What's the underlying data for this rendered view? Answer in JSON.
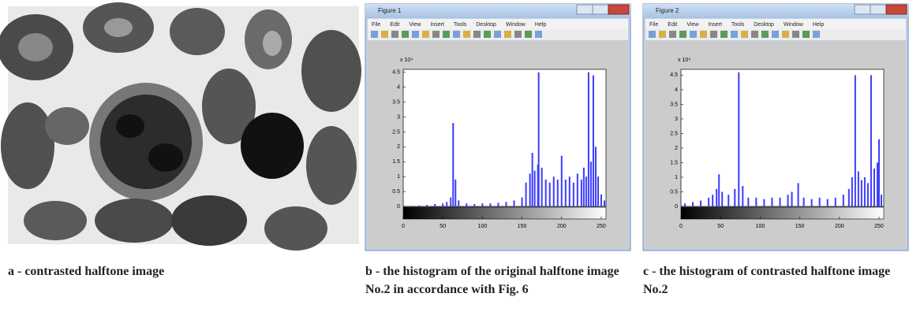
{
  "figure_a": {
    "caption": "a - contrasted halftone image"
  },
  "figure_b": {
    "window_title": "Figure 1",
    "menu": [
      "File",
      "Edit",
      "View",
      "Insert",
      "Tools",
      "Desktop",
      "Window",
      "Help"
    ],
    "caption": "b - the histogram of the original halftone image No.2 in accordance with Fig. 6",
    "chart_data": {
      "type": "bar",
      "y_scale_label": "x 10⁴",
      "color": "#3c3cff",
      "x": [
        10,
        20,
        30,
        40,
        50,
        55,
        60,
        63,
        66,
        70,
        80,
        90,
        100,
        110,
        120,
        130,
        140,
        150,
        155,
        160,
        163,
        166,
        170,
        171,
        175,
        180,
        185,
        190,
        195,
        200,
        205,
        210,
        215,
        220,
        225,
        228,
        231,
        234,
        237,
        240,
        243,
        246,
        250,
        254
      ],
      "values": [
        0.02,
        0.03,
        0.05,
        0.08,
        0.1,
        0.15,
        0.3,
        2.8,
        0.9,
        0.2,
        0.1,
        0.08,
        0.1,
        0.1,
        0.12,
        0.15,
        0.2,
        0.3,
        0.8,
        1.1,
        1.8,
        1.2,
        1.4,
        4.5,
        1.3,
        0.9,
        0.8,
        1.0,
        0.9,
        1.7,
        0.9,
        1.0,
        0.8,
        1.1,
        0.9,
        1.3,
        1.0,
        4.5,
        1.5,
        4.4,
        2.0,
        1.0,
        0.4,
        0.2
      ],
      "xlim": [
        0,
        256
      ],
      "ylim": [
        0,
        4.6
      ],
      "xticks": [
        0,
        50,
        100,
        150,
        200,
        250
      ],
      "yticks": [
        0,
        0.5,
        1,
        1.5,
        2,
        2.5,
        3,
        3.5,
        4,
        4.5
      ]
    }
  },
  "figure_c": {
    "window_title": "Figure 2",
    "menu": [
      "File",
      "Edit",
      "View",
      "Insert",
      "Tools",
      "Desktop",
      "Window",
      "Help"
    ],
    "caption": "c - the histogram of contrasted halftone image No.2",
    "chart_data": {
      "type": "bar",
      "y_scale_label": "x 10⁴",
      "color": "#3c3cff",
      "x": [
        5,
        15,
        25,
        35,
        40,
        45,
        48,
        52,
        60,
        68,
        73,
        78,
        85,
        95,
        105,
        115,
        125,
        135,
        140,
        148,
        155,
        165,
        175,
        185,
        195,
        205,
        212,
        216,
        220,
        224,
        228,
        232,
        236,
        240,
        244,
        248,
        250,
        253
      ],
      "values": [
        0.1,
        0.15,
        0.2,
        0.3,
        0.4,
        0.6,
        1.1,
        0.5,
        0.4,
        0.6,
        4.6,
        0.7,
        0.3,
        0.3,
        0.25,
        0.3,
        0.3,
        0.4,
        0.5,
        0.8,
        0.3,
        0.25,
        0.3,
        0.25,
        0.3,
        0.4,
        0.6,
        1.0,
        4.5,
        1.2,
        0.9,
        1.0,
        0.8,
        4.5,
        1.3,
        1.5,
        2.3,
        0.4
      ],
      "xlim": [
        0,
        256
      ],
      "ylim": [
        0,
        4.7
      ],
      "xticks": [
        0,
        50,
        100,
        150,
        200,
        250
      ],
      "yticks": [
        0,
        0.5,
        1,
        1.5,
        2,
        2.5,
        3,
        3.5,
        4,
        4.5
      ]
    }
  }
}
